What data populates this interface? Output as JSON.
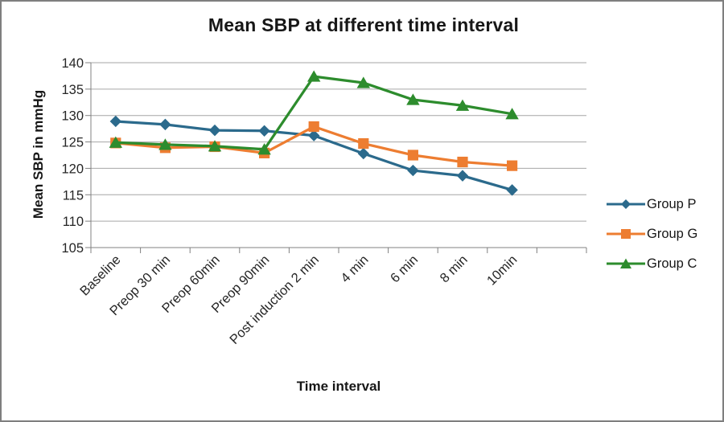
{
  "window": {
    "background_color": "#FFFFFF",
    "border_color": "#7F7F7F"
  },
  "chart_data": {
    "type": "line",
    "title": "Mean SBP at different time interval",
    "xlabel": "Time interval",
    "ylabel": "Mean SBP in mmHg",
    "ylim": [
      105,
      140
    ],
    "yticks": [
      105,
      110,
      115,
      120,
      125,
      130,
      135,
      140
    ],
    "grid": "horizontal-only",
    "gridline_color": "#A6A6A6",
    "axis_color": "#808080",
    "text_color": "#262626",
    "legend_position": "right",
    "categories": [
      "Baseline",
      "Preop 30 min",
      "Preop 60min",
      "Preop 90min",
      "Post induction 2 min",
      "4 min",
      "6 min",
      "8 min",
      "10min"
    ],
    "series": [
      {
        "name": "Group P",
        "marker": "diamond",
        "color": "#2B6A8C",
        "values": [
          128.9,
          128.3,
          127.2,
          127.1,
          126.2,
          122.8,
          119.6,
          118.6,
          115.9
        ]
      },
      {
        "name": "Group G",
        "marker": "square",
        "color": "#ED7D31",
        "values": [
          124.8,
          123.9,
          124.1,
          122.9,
          127.9,
          124.7,
          122.5,
          121.2,
          120.5
        ]
      },
      {
        "name": "Group C",
        "marker": "triangle",
        "color": "#2D8C2D",
        "values": [
          124.9,
          124.5,
          124.2,
          123.6,
          137.4,
          136.2,
          133.0,
          131.9,
          130.3
        ]
      }
    ]
  }
}
